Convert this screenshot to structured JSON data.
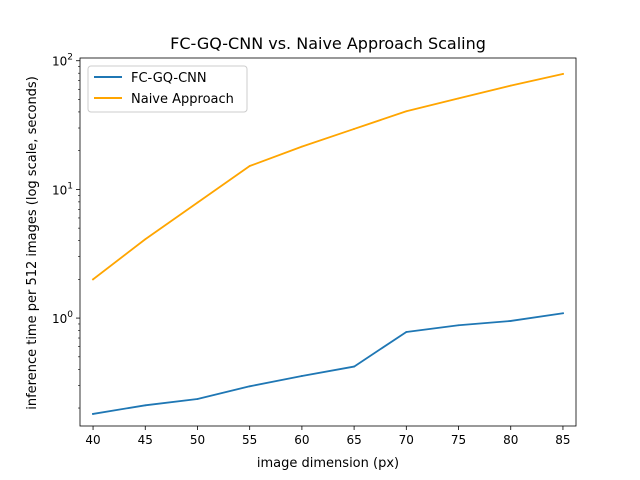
{
  "chart_data": {
    "type": "line",
    "title": "FC-GQ-CNN vs. Naive Approach Scaling",
    "xlabel": "image dimension (px)",
    "ylabel": "inference time per 512 images (log scale, seconds)",
    "yscale": "log",
    "xlim": [
      38.75,
      86.25
    ],
    "ylim": [
      0.145,
      105
    ],
    "x_ticks": [
      40,
      45,
      50,
      55,
      60,
      65,
      70,
      75,
      80,
      85
    ],
    "x_tick_labels": [
      "40",
      "45",
      "50",
      "55",
      "60",
      "65",
      "70",
      "75",
      "80",
      "85"
    ],
    "y_ticks": [
      {
        "value": 1,
        "base": "10",
        "exp": "0"
      },
      {
        "value": 10,
        "base": "10",
        "exp": "1"
      },
      {
        "value": 100,
        "base": "10",
        "exp": "2"
      }
    ],
    "legend_position": "upper-left",
    "grid": false,
    "x": [
      40,
      45,
      50,
      55,
      60,
      65,
      70,
      75,
      80,
      85
    ],
    "series": [
      {
        "name": "FC-GQ-CNN",
        "color": "#1f77b4",
        "values": [
          0.18,
          0.21,
          0.235,
          0.295,
          0.355,
          0.42,
          0.78,
          0.88,
          0.95,
          1.09
        ]
      },
      {
        "name": "Naive Approach",
        "color": "#ffa500",
        "values": [
          2.0,
          4.1,
          7.9,
          15.2,
          21.5,
          29.5,
          40.5,
          51.0,
          64.0,
          79.0
        ]
      }
    ]
  }
}
